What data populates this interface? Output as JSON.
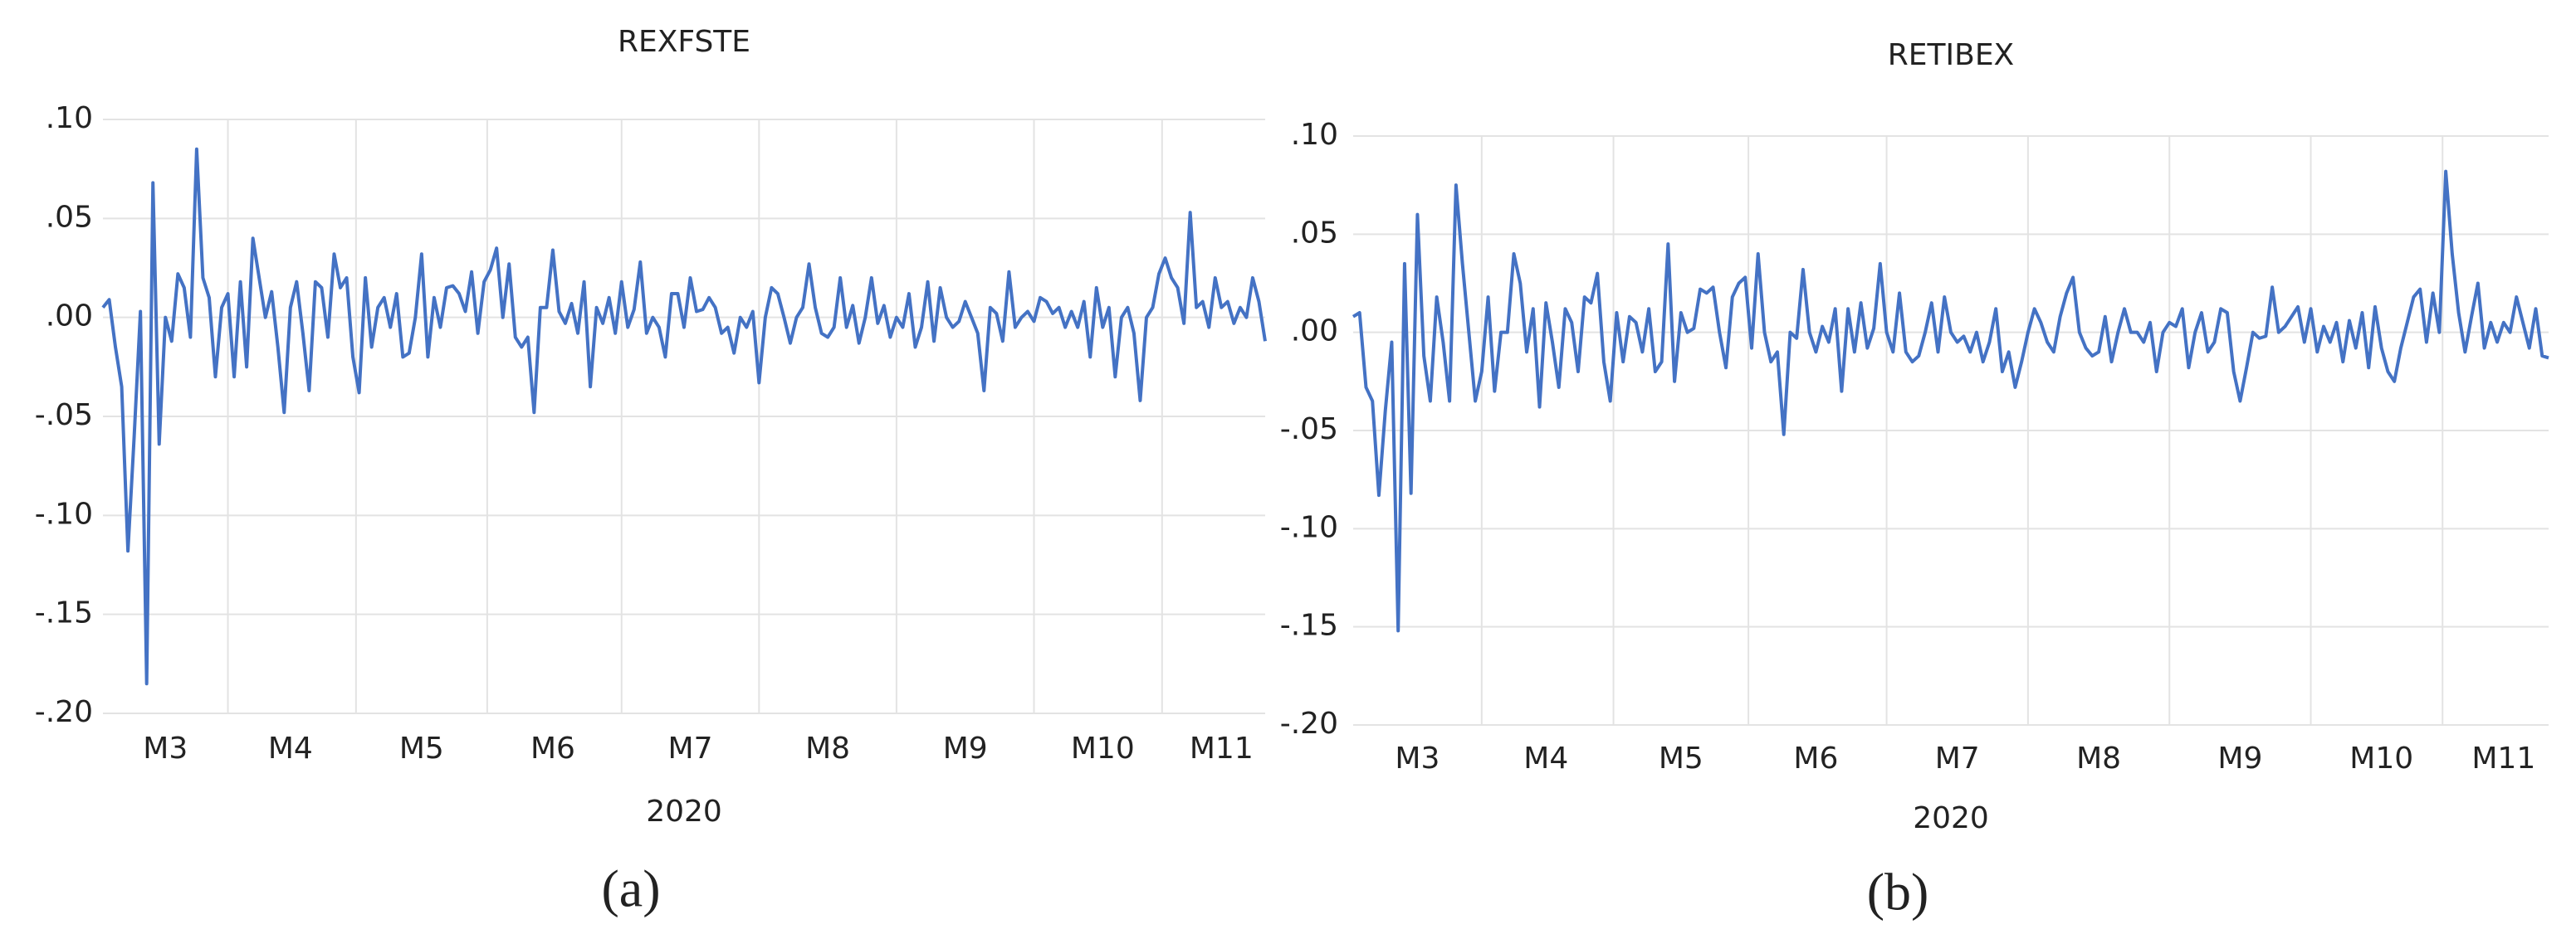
{
  "chart_data": [
    {
      "type": "line",
      "title": "REXFSTE",
      "xlabel": "2020",
      "panel_label": "(a)",
      "color": "#4472c4",
      "grid": true,
      "ylim": [
        -0.2,
        0.1
      ],
      "yticks": [
        {
          "value": 0.1,
          "label": ".10"
        },
        {
          "value": 0.05,
          "label": ".05"
        },
        {
          "value": 0,
          "label": ".00"
        },
        {
          "value": -0.05,
          "label": "-.05"
        },
        {
          "value": -0.1,
          "label": "-.10"
        },
        {
          "value": -0.15,
          "label": "-.15"
        },
        {
          "value": -0.2,
          "label": "-.20"
        }
      ],
      "categories": [
        null,
        null,
        null,
        null,
        null,
        null,
        null,
        null,
        null,
        null,
        "M3",
        null,
        null,
        null,
        null,
        null,
        null,
        null,
        null,
        null,
        null,
        null,
        null,
        null,
        null,
        null,
        null,
        null,
        null,
        null,
        "M4",
        null,
        null,
        null,
        null,
        null,
        null,
        null,
        null,
        null,
        null,
        null,
        null,
        null,
        null,
        null,
        null,
        null,
        null,
        null,
        null,
        "M5",
        null,
        null,
        null,
        null,
        null,
        null,
        null,
        null,
        null,
        null,
        null,
        null,
        null,
        null,
        null,
        null,
        null,
        null,
        null,
        null,
        "M6",
        null,
        null,
        null,
        null,
        null,
        null,
        null,
        null,
        null,
        null,
        null,
        null,
        null,
        null,
        null,
        null,
        null,
        null,
        null,
        null,
        null,
        "M7",
        null,
        null,
        null,
        null,
        null,
        null,
        null,
        null,
        null,
        null,
        null,
        null,
        null,
        null,
        null,
        null,
        null,
        null,
        null,
        null,
        null,
        "M8",
        null,
        null,
        null,
        null,
        null,
        null,
        null,
        null,
        null,
        null,
        null,
        null,
        null,
        null,
        null,
        null,
        null,
        null,
        null,
        null,
        null,
        "M9",
        null,
        null,
        null,
        null,
        null,
        null,
        null,
        null,
        null,
        null,
        null,
        null,
        null,
        null,
        null,
        null,
        null,
        null,
        null,
        null,
        null,
        "M10",
        null,
        null,
        null,
        null,
        null,
        null,
        null,
        null,
        null,
        null,
        null,
        null,
        null,
        null,
        null,
        null,
        null,
        null,
        "M11",
        null,
        null,
        null,
        null,
        null,
        null,
        null
      ],
      "values": [
        0.005,
        0.009,
        -0.015,
        -0.035,
        -0.118,
        -0.06,
        0.003,
        -0.185,
        0.068,
        -0.064,
        0.0,
        -0.012,
        0.022,
        0.015,
        -0.01,
        0.085,
        0.02,
        0.01,
        -0.03,
        0.005,
        0.012,
        -0.03,
        0.018,
        -0.025,
        0.04,
        0.02,
        0.0,
        0.013,
        -0.015,
        -0.048,
        0.005,
        0.018,
        -0.008,
        -0.037,
        0.018,
        0.015,
        -0.01,
        0.032,
        0.015,
        0.02,
        -0.02,
        -0.038,
        0.02,
        -0.015,
        0.005,
        0.01,
        -0.005,
        0.012,
        -0.02,
        -0.018,
        0.0,
        0.032,
        -0.02,
        0.01,
        -0.005,
        0.015,
        0.016,
        0.012,
        0.003,
        0.023,
        -0.008,
        0.018,
        0.024,
        0.035,
        0.0,
        0.027,
        -0.01,
        -0.015,
        -0.01,
        -0.048,
        0.005,
        0.005,
        0.034,
        0.003,
        -0.003,
        0.007,
        -0.008,
        0.018,
        -0.035,
        0.005,
        -0.003,
        0.01,
        -0.008,
        0.018,
        -0.005,
        0.004,
        0.028,
        -0.008,
        0.0,
        -0.005,
        -0.02,
        0.012,
        0.012,
        -0.005,
        0.02,
        0.003,
        0.004,
        0.01,
        0.005,
        -0.008,
        -0.005,
        -0.018,
        0.0,
        -0.005,
        0.003,
        -0.033,
        0.0,
        0.015,
        0.012,
        0.0,
        -0.013,
        0.0,
        0.005,
        0.027,
        0.005,
        -0.008,
        -0.01,
        -0.005,
        0.02,
        -0.005,
        0.006,
        -0.013,
        0.0,
        0.02,
        -0.003,
        0.006,
        -0.01,
        0.0,
        -0.005,
        0.012,
        -0.015,
        -0.005,
        0.018,
        -0.012,
        0.015,
        0.0,
        -0.005,
        -0.002,
        0.008,
        0.0,
        -0.008,
        -0.037,
        0.005,
        0.002,
        -0.012,
        0.023,
        -0.005,
        0.0,
        0.003,
        -0.002,
        0.01,
        0.008,
        0.002,
        0.005,
        -0.005,
        0.003,
        -0.005,
        0.008,
        -0.02,
        0.015,
        -0.005,
        0.005,
        -0.03,
        0.0,
        0.005,
        -0.008,
        -0.042,
        0.0,
        0.005,
        0.022,
        0.03,
        0.02,
        0.015,
        -0.003,
        0.053,
        0.005,
        0.008,
        -0.005,
        0.02,
        0.005,
        0.008,
        -0.003,
        0.005,
        0.0,
        0.02,
        0.008,
        -0.012
      ]
    },
    {
      "type": "line",
      "title": "RETIBEX",
      "xlabel": "2020",
      "panel_label": "(b)",
      "color": "#4472c4",
      "grid": true,
      "ylim": [
        -0.2,
        0.1
      ],
      "yticks": [
        {
          "value": 0.1,
          "label": ".10"
        },
        {
          "value": 0.05,
          "label": ".05"
        },
        {
          "value": 0,
          "label": ".00"
        },
        {
          "value": -0.05,
          "label": "-.05"
        },
        {
          "value": -0.1,
          "label": "-.10"
        },
        {
          "value": -0.15,
          "label": "-.15"
        },
        {
          "value": -0.2,
          "label": "-.20"
        }
      ],
      "categories": [
        null,
        null,
        null,
        null,
        null,
        null,
        null,
        null,
        null,
        null,
        "M3",
        null,
        null,
        null,
        null,
        null,
        null,
        null,
        null,
        null,
        null,
        null,
        null,
        null,
        null,
        null,
        null,
        null,
        null,
        null,
        "M4",
        null,
        null,
        null,
        null,
        null,
        null,
        null,
        null,
        null,
        null,
        null,
        null,
        null,
        null,
        null,
        null,
        null,
        null,
        null,
        null,
        "M5",
        null,
        null,
        null,
        null,
        null,
        null,
        null,
        null,
        null,
        null,
        null,
        null,
        null,
        null,
        null,
        null,
        null,
        null,
        null,
        null,
        "M6",
        null,
        null,
        null,
        null,
        null,
        null,
        null,
        null,
        null,
        null,
        null,
        null,
        null,
        null,
        null,
        null,
        null,
        null,
        null,
        null,
        null,
        "M7",
        null,
        null,
        null,
        null,
        null,
        null,
        null,
        null,
        null,
        null,
        null,
        null,
        null,
        null,
        null,
        null,
        null,
        null,
        null,
        null,
        null,
        "M8",
        null,
        null,
        null,
        null,
        null,
        null,
        null,
        null,
        null,
        null,
        null,
        null,
        null,
        null,
        null,
        null,
        null,
        null,
        null,
        null,
        null,
        "M9",
        null,
        null,
        null,
        null,
        null,
        null,
        null,
        null,
        null,
        null,
        null,
        null,
        null,
        null,
        null,
        null,
        null,
        null,
        null,
        null,
        null,
        "M10",
        null,
        null,
        null,
        null,
        null,
        null,
        null,
        null,
        null,
        null,
        null,
        null,
        null,
        null,
        null,
        null,
        null,
        null,
        "M11",
        null,
        null,
        null,
        null,
        null,
        null,
        null
      ],
      "values": [
        0.008,
        0.01,
        -0.028,
        -0.035,
        -0.083,
        -0.04,
        -0.005,
        -0.152,
        0.035,
        -0.082,
        0.06,
        -0.012,
        -0.035,
        0.018,
        -0.005,
        -0.035,
        0.075,
        0.035,
        0.0,
        -0.035,
        -0.02,
        0.018,
        -0.03,
        0.0,
        0.0,
        0.04,
        0.025,
        -0.01,
        0.012,
        -0.038,
        0.015,
        -0.005,
        -0.028,
        0.012,
        0.005,
        -0.02,
        0.018,
        0.015,
        0.03,
        -0.015,
        -0.035,
        0.01,
        -0.015,
        0.008,
        0.005,
        -0.01,
        0.012,
        -0.02,
        -0.015,
        0.045,
        -0.025,
        0.01,
        0.0,
        0.002,
        0.022,
        0.02,
        0.023,
        0.0,
        -0.018,
        0.018,
        0.025,
        0.028,
        -0.008,
        0.04,
        0.0,
        -0.015,
        -0.01,
        -0.052,
        0.0,
        -0.003,
        0.032,
        0.0,
        -0.01,
        0.003,
        -0.005,
        0.012,
        -0.03,
        0.012,
        -0.01,
        0.015,
        -0.008,
        0.002,
        0.035,
        0.0,
        -0.01,
        0.02,
        -0.01,
        -0.015,
        -0.012,
        0.0,
        0.015,
        -0.01,
        0.018,
        0.0,
        -0.005,
        -0.002,
        -0.01,
        0.0,
        -0.015,
        -0.005,
        0.012,
        -0.02,
        -0.01,
        -0.028,
        -0.015,
        0.0,
        0.012,
        0.005,
        -0.005,
        -0.01,
        0.008,
        0.02,
        0.028,
        0.0,
        -0.008,
        -0.012,
        -0.01,
        0.008,
        -0.015,
        0.0,
        0.012,
        0.0,
        0.0,
        -0.005,
        0.005,
        -0.02,
        0.0,
        0.005,
        0.003,
        0.012,
        -0.018,
        0.0,
        0.01,
        -0.01,
        -0.005,
        0.012,
        0.01,
        -0.02,
        -0.035,
        -0.018,
        0.0,
        -0.003,
        -0.002,
        0.023,
        0.0,
        0.003,
        0.008,
        0.013,
        -0.005,
        0.012,
        -0.01,
        0.003,
        -0.005,
        0.005,
        -0.015,
        0.006,
        -0.008,
        0.01,
        -0.018,
        0.013,
        -0.008,
        -0.02,
        -0.025,
        -0.008,
        0.005,
        0.018,
        0.022,
        -0.005,
        0.02,
        0.0,
        0.082,
        0.04,
        0.01,
        -0.01,
        0.008,
        0.025,
        -0.008,
        0.005,
        -0.005,
        0.005,
        0.0,
        0.018,
        0.005,
        -0.008,
        0.012,
        -0.012,
        -0.013
      ]
    }
  ]
}
